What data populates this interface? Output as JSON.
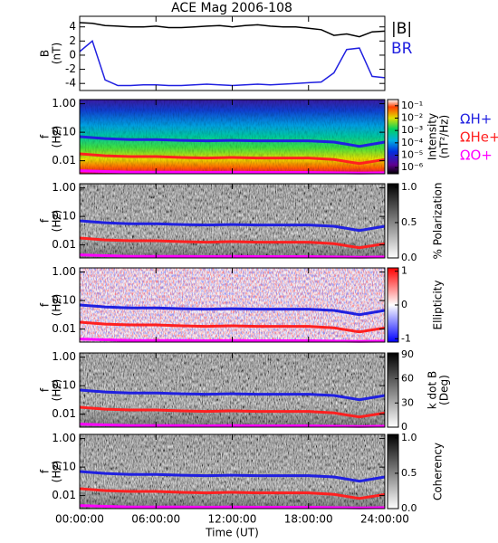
{
  "chart_data": [
    {
      "type": "line",
      "title": "ACE Mag 2006-108",
      "ylabel": [
        "B",
        "(nT)"
      ],
      "x": [
        0,
        1,
        2,
        3,
        4,
        5,
        6,
        7,
        8,
        9,
        10,
        11,
        12,
        13,
        14,
        15,
        16,
        17,
        18,
        19,
        20,
        21,
        22,
        23,
        24
      ],
      "series": [
        {
          "name": "|B|",
          "color": "#000000",
          "values": [
            4.6,
            4.5,
            4.2,
            4.1,
            4.0,
            4.0,
            4.1,
            3.9,
            3.9,
            4.0,
            4.1,
            4.2,
            4.0,
            4.2,
            4.3,
            4.1,
            4.0,
            4.0,
            3.8,
            3.6,
            2.8,
            3.0,
            2.6,
            3.3,
            3.4
          ]
        },
        {
          "name": "BR",
          "color": "#2020e0",
          "values": [
            0.5,
            2.0,
            -3.5,
            -4.3,
            -4.3,
            -4.2,
            -4.2,
            -4.3,
            -4.3,
            -4.2,
            -4.1,
            -4.2,
            -4.3,
            -4.2,
            -4.1,
            -4.2,
            -4.1,
            -4.0,
            -3.9,
            -3.8,
            -2.5,
            0.8,
            1.0,
            -3.0,
            -3.2
          ]
        }
      ],
      "ylim": [
        -5,
        5.5
      ],
      "yticks": [
        -4,
        -2,
        0,
        2,
        4
      ]
    },
    {
      "type": "spectrogram",
      "style": "intensity",
      "ylabel": [
        "f",
        "(Hz)"
      ],
      "log_y": true,
      "ylim": [
        0.0035,
        1.4
      ],
      "yticks": [
        {
          "value": 0.01,
          "label": "0.01"
        },
        {
          "value": 0.1,
          "label": "0.10"
        },
        {
          "value": 1,
          "label": "1.00"
        }
      ],
      "x": [
        0,
        2,
        4,
        6,
        8,
        10,
        12,
        14,
        16,
        18,
        20,
        22,
        24
      ],
      "series": [
        {
          "name": "ΩH+",
          "color": "#2020e0",
          "values": [
            0.07,
            0.06,
            0.055,
            0.055,
            0.052,
            0.05,
            0.052,
            0.05,
            0.05,
            0.05,
            0.045,
            0.032,
            0.045
          ]
        },
        {
          "name": "ΩHe+",
          "color": "#ff2020",
          "values": [
            0.0175,
            0.015,
            0.014,
            0.014,
            0.013,
            0.0125,
            0.013,
            0.0125,
            0.0125,
            0.0125,
            0.011,
            0.008,
            0.011
          ]
        },
        {
          "name": "ΩO+",
          "color": "#ff00ff",
          "values": [
            0.0045,
            0.0042,
            0.004,
            0.004,
            0.004,
            0.0039,
            0.004,
            0.0039,
            0.0039,
            0.0039,
            0.0038,
            0.0037,
            0.0038
          ]
        }
      ],
      "colorbar_label": [
        "Intensity",
        "(nT²/Hz)"
      ],
      "clim": [
        -6.5,
        -0.5
      ],
      "cticks": [
        {
          "value": -6,
          "label": "10⁻⁶"
        },
        {
          "value": -5,
          "label": "10⁻⁵"
        },
        {
          "value": -4,
          "label": "10⁻⁴"
        },
        {
          "value": -3,
          "label": "10⁻³"
        },
        {
          "value": -2,
          "label": "10⁻²"
        },
        {
          "value": -1,
          "label": "10⁻¹"
        }
      ]
    },
    {
      "type": "spectrogram",
      "style": "gray",
      "ylabel": [
        "f",
        "(Hz)"
      ],
      "log_y": true,
      "ylim": [
        0.0035,
        1.4
      ],
      "yticks": [
        {
          "value": 0.01,
          "label": "0.01"
        },
        {
          "value": 0.1,
          "label": "0.10"
        },
        {
          "value": 1,
          "label": "1.00"
        }
      ],
      "colorbar_label": [
        "% Polarization"
      ],
      "clim": [
        0,
        1.05
      ],
      "cticks": [
        {
          "value": 0,
          "label": "0.0"
        },
        {
          "value": 0.5,
          "label": "0.5"
        },
        {
          "value": 1,
          "label": "1.0"
        }
      ]
    },
    {
      "type": "spectrogram",
      "style": "ellipticity",
      "ylabel": [
        "f",
        "(Hz)"
      ],
      "log_y": true,
      "ylim": [
        0.0035,
        1.4
      ],
      "yticks": [
        {
          "value": 0.01,
          "label": "0.01"
        },
        {
          "value": 0.1,
          "label": "0.10"
        },
        {
          "value": 1,
          "label": "1.00"
        }
      ],
      "colorbar_label": [
        "Ellipticity"
      ],
      "clim": [
        -1.1,
        1.1
      ],
      "cticks": [
        -1,
        0,
        1
      ]
    },
    {
      "type": "spectrogram",
      "style": "gray",
      "ylabel": [
        "f",
        "(Hz)"
      ],
      "log_y": true,
      "ylim": [
        0.0035,
        1.4
      ],
      "yticks": [
        {
          "value": 0.01,
          "label": "0.01"
        },
        {
          "value": 0.1,
          "label": "0.10"
        },
        {
          "value": 1,
          "label": "1.00"
        }
      ],
      "colorbar_label": [
        "k dot B",
        "(Deg)"
      ],
      "clim": [
        0,
        92
      ],
      "cticks": [
        0,
        30,
        60,
        90
      ]
    },
    {
      "type": "spectrogram",
      "style": "gray",
      "ylabel": [
        "f",
        "(Hz)"
      ],
      "log_y": true,
      "ylim": [
        0.0035,
        1.4
      ],
      "yticks": [
        {
          "value": 0.01,
          "label": "0.01"
        },
        {
          "value": 0.1,
          "label": "0.10"
        },
        {
          "value": 1,
          "label": "1.00"
        }
      ],
      "colorbar_label": [
        "Coherency"
      ],
      "clim": [
        0,
        1.05
      ],
      "cticks": [
        {
          "value": 0,
          "label": "0.0"
        },
        {
          "value": 0.5,
          "label": "0.5"
        },
        {
          "value": 1,
          "label": "1.0"
        }
      ],
      "xlabel": "Time (UT)",
      "xlim": [
        0,
        24
      ],
      "xticks": [
        {
          "value": 0,
          "label": "00:00:00"
        },
        {
          "value": 6,
          "label": "06:00:00"
        },
        {
          "value": 12,
          "label": "12:00:00"
        },
        {
          "value": 18,
          "label": "18:00:00"
        },
        {
          "value": 24,
          "label": "24:00:00"
        }
      ]
    }
  ]
}
